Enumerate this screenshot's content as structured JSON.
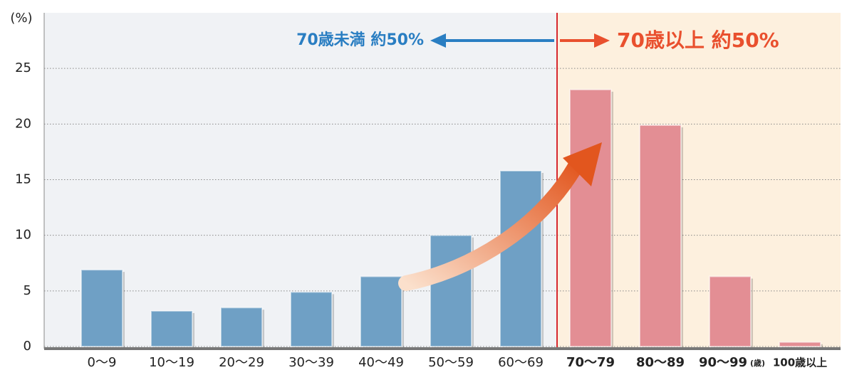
{
  "chart_data": {
    "type": "bar",
    "y_label": "(%)",
    "x_unit": "(歳)",
    "annotations": [
      "70歳未満 約50%",
      "70歳以上 約50%"
    ],
    "categories": [
      "0～9",
      "10～19",
      "20～29",
      "30～39",
      "40～49",
      "50～59",
      "60～69",
      "70～79",
      "80～89",
      "90～99",
      "100歳以上"
    ],
    "values": [
      6.9,
      3.2,
      3.5,
      4.9,
      6.3,
      10.0,
      15.8,
      23.1,
      19.9,
      6.3,
      0.4
    ],
    "colors": [
      "#6fa0c5",
      "#6fa0c5",
      "#6fa0c5",
      "#6fa0c5",
      "#6fa0c5",
      "#6fa0c5",
      "#6fa0c5",
      "#e38e94",
      "#e38e94",
      "#e38e94",
      "#e38e94"
    ],
    "ylim": [
      0,
      30
    ],
    "yticks": [
      0,
      5,
      10,
      15,
      20,
      25
    ],
    "grid": true
  }
}
